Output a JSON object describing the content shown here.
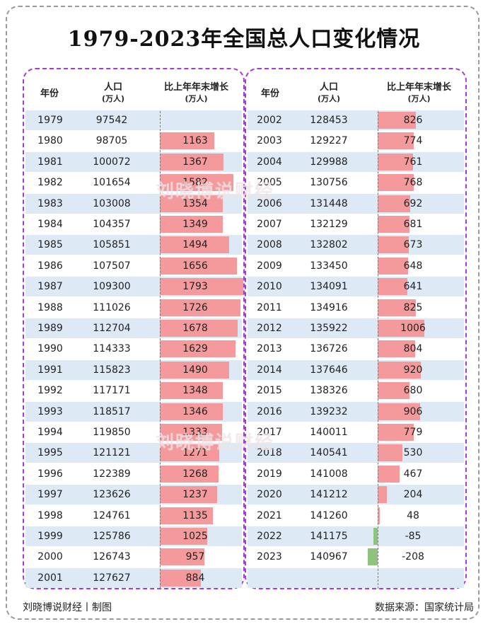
{
  "title": "1979-2023年全国总人口变化情况",
  "columns": {
    "year": "年份",
    "population": "人口",
    "population_unit": "(万人)",
    "growth": "比上年年末增长",
    "growth_unit": "(万人)"
  },
  "watermark": "刘晓博说财经",
  "footer": {
    "left": "刘晓博说财经丨制图",
    "right": "数据来源：国家统计局"
  },
  "colors": {
    "positive": "#f59a9c",
    "negative": "#8fc37d",
    "stripe": "#dde9f5",
    "border": "#a43bd6"
  },
  "chart_data": {
    "type": "table",
    "title": "1979-2023年全国总人口变化情况",
    "years": [
      "1979",
      "1980",
      "1981",
      "1982",
      "1983",
      "1984",
      "1985",
      "1986",
      "1987",
      "1988",
      "1989",
      "1990",
      "1991",
      "1992",
      "1993",
      "1994",
      "1995",
      "1996",
      "1997",
      "1998",
      "1999",
      "2000",
      "2001",
      "2002",
      "2003",
      "2004",
      "2005",
      "2006",
      "2007",
      "2008",
      "2009",
      "2010",
      "2011",
      "2012",
      "2013",
      "2014",
      "2015",
      "2016",
      "2017",
      "2018",
      "2019",
      "2020",
      "2021",
      "2022",
      "2023"
    ],
    "population": [
      97542,
      98705,
      100072,
      101654,
      103008,
      104357,
      105851,
      107507,
      109300,
      111026,
      112704,
      114333,
      115823,
      117171,
      118517,
      119850,
      121121,
      122389,
      123626,
      124761,
      125786,
      126743,
      127627,
      128453,
      129227,
      129988,
      130756,
      131448,
      132129,
      132802,
      133450,
      134091,
      134916,
      135922,
      136726,
      137646,
      138326,
      139232,
      140011,
      140541,
      141008,
      141212,
      141260,
      141175,
      140967
    ],
    "growth": [
      null,
      1163,
      1367,
      1582,
      1354,
      1349,
      1494,
      1656,
      1793,
      1726,
      1678,
      1629,
      1490,
      1348,
      1346,
      1333,
      1271,
      1268,
      1237,
      1135,
      1025,
      957,
      884,
      826,
      774,
      761,
      768,
      692,
      681,
      673,
      648,
      641,
      825,
      1006,
      804,
      920,
      680,
      906,
      779,
      530,
      467,
      204,
      48,
      -85,
      -208
    ],
    "growth_max": 1793
  }
}
